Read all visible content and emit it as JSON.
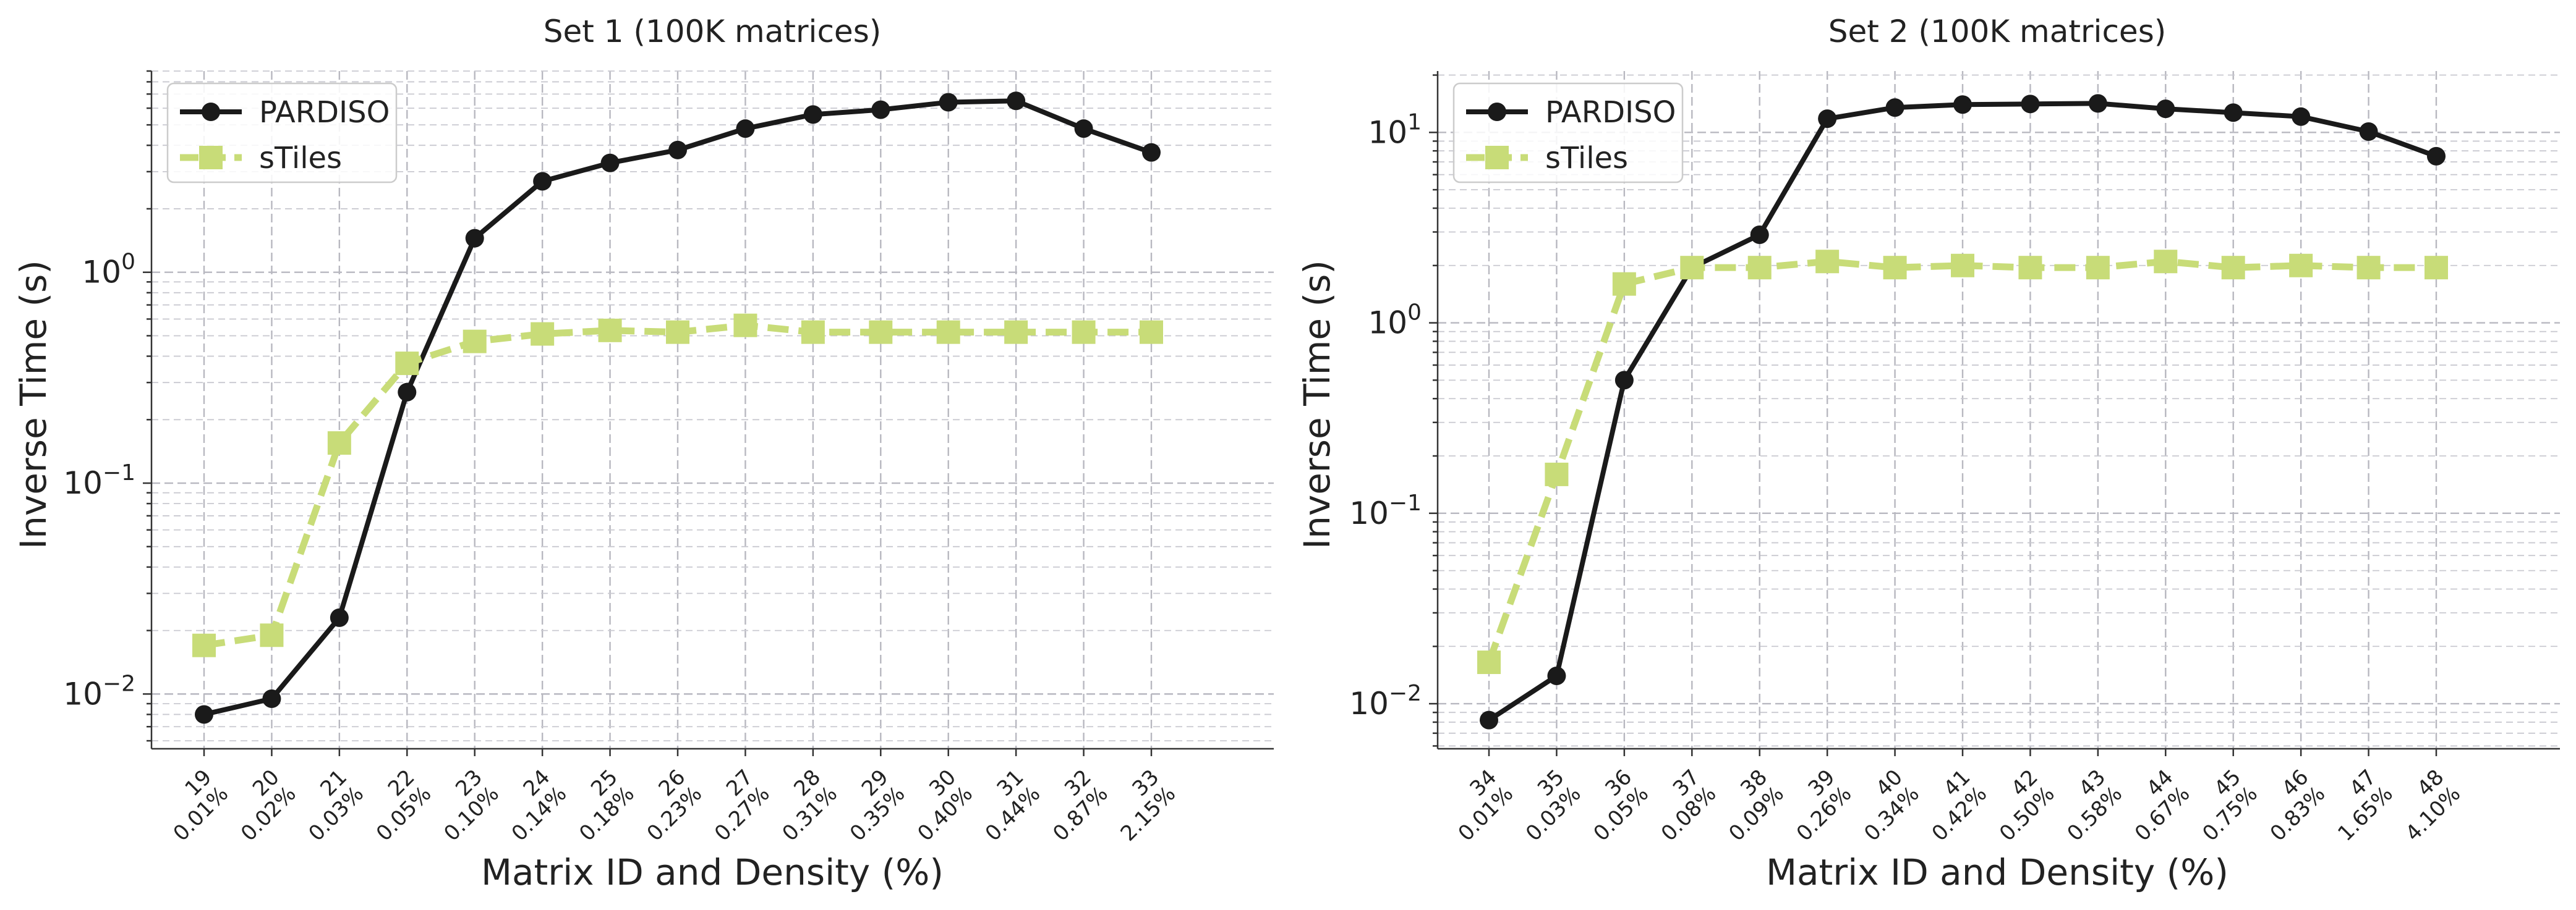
{
  "chart_data": [
    {
      "type": "line",
      "title": "Set 1 (100K matrices)",
      "xlabel": "Matrix ID and Density (%)",
      "ylabel": "Inverse Time (s)",
      "yscale": "log",
      "ylim": [
        0.0055,
        9
      ],
      "yticks": [
        {
          "value": 0.01,
          "base": "10",
          "exp": "−2"
        },
        {
          "value": 0.1,
          "base": "10",
          "exp": "−1"
        },
        {
          "value": 1,
          "base": "10",
          "exp": "0"
        }
      ],
      "categories": [
        {
          "id": "19",
          "density": "0.01%"
        },
        {
          "id": "20",
          "density": "0.02%"
        },
        {
          "id": "21",
          "density": "0.03%"
        },
        {
          "id": "22",
          "density": "0.05%"
        },
        {
          "id": "23",
          "density": "0.10%"
        },
        {
          "id": "24",
          "density": "0.14%"
        },
        {
          "id": "25",
          "density": "0.18%"
        },
        {
          "id": "26",
          "density": "0.23%"
        },
        {
          "id": "27",
          "density": "0.27%"
        },
        {
          "id": "28",
          "density": "0.31%"
        },
        {
          "id": "29",
          "density": "0.35%"
        },
        {
          "id": "30",
          "density": "0.40%"
        },
        {
          "id": "31",
          "density": "0.44%"
        },
        {
          "id": "32",
          "density": "0.87%"
        },
        {
          "id": "33",
          "density": "2.15%"
        }
      ],
      "series": [
        {
          "name": "PARDISO",
          "color": "#1a1a1a",
          "style": "solid",
          "marker": "circle",
          "values": [
            0.008,
            0.0095,
            0.023,
            0.27,
            1.45,
            2.7,
            3.3,
            3.8,
            4.8,
            5.6,
            5.9,
            6.4,
            6.5,
            4.8,
            3.7
          ]
        },
        {
          "name": "sTiles",
          "color": "#c8dc78",
          "style": "dashed",
          "marker": "square",
          "values": [
            0.017,
            0.019,
            0.155,
            0.37,
            0.47,
            0.51,
            0.53,
            0.52,
            0.56,
            0.52,
            0.52,
            0.52,
            0.52,
            0.52,
            0.52
          ]
        }
      ],
      "grid": true,
      "legend": "top-left"
    },
    {
      "type": "line",
      "title": "Set 2 (100K matrices)",
      "xlabel": "Matrix ID and Density (%)",
      "ylabel": "Inverse Time (s)",
      "yscale": "log",
      "ylim": [
        0.0058,
        21
      ],
      "yticks": [
        {
          "value": 0.01,
          "base": "10",
          "exp": "−2"
        },
        {
          "value": 0.1,
          "base": "10",
          "exp": "−1"
        },
        {
          "value": 1,
          "base": "10",
          "exp": "0"
        },
        {
          "value": 10,
          "base": "10",
          "exp": "1"
        }
      ],
      "categories": [
        {
          "id": "34",
          "density": "0.01%"
        },
        {
          "id": "35",
          "density": "0.03%"
        },
        {
          "id": "36",
          "density": "0.05%"
        },
        {
          "id": "37",
          "density": "0.08%"
        },
        {
          "id": "38",
          "density": "0.09%"
        },
        {
          "id": "39",
          "density": "0.26%"
        },
        {
          "id": "40",
          "density": "0.34%"
        },
        {
          "id": "41",
          "density": "0.42%"
        },
        {
          "id": "42",
          "density": "0.50%"
        },
        {
          "id": "43",
          "density": "0.58%"
        },
        {
          "id": "44",
          "density": "0.67%"
        },
        {
          "id": "45",
          "density": "0.75%"
        },
        {
          "id": "46",
          "density": "0.83%"
        },
        {
          "id": "47",
          "density": "1.65%"
        },
        {
          "id": "48",
          "density": "4.10%"
        }
      ],
      "series": [
        {
          "name": "PARDISO",
          "color": "#1a1a1a",
          "style": "solid",
          "marker": "circle",
          "values": [
            0.0082,
            0.014,
            0.5,
            1.95,
            2.9,
            11.8,
            13.5,
            14.0,
            14.1,
            14.2,
            13.3,
            12.7,
            12.1,
            10.1,
            7.5
          ]
        },
        {
          "name": "sTiles",
          "color": "#c8dc78",
          "style": "dashed",
          "marker": "square",
          "values": [
            0.0165,
            0.16,
            1.6,
            1.95,
            1.95,
            2.1,
            1.95,
            2.0,
            1.95,
            1.95,
            2.1,
            1.95,
            2.0,
            1.95,
            1.95
          ]
        }
      ],
      "grid": true,
      "legend": "top-left"
    }
  ]
}
